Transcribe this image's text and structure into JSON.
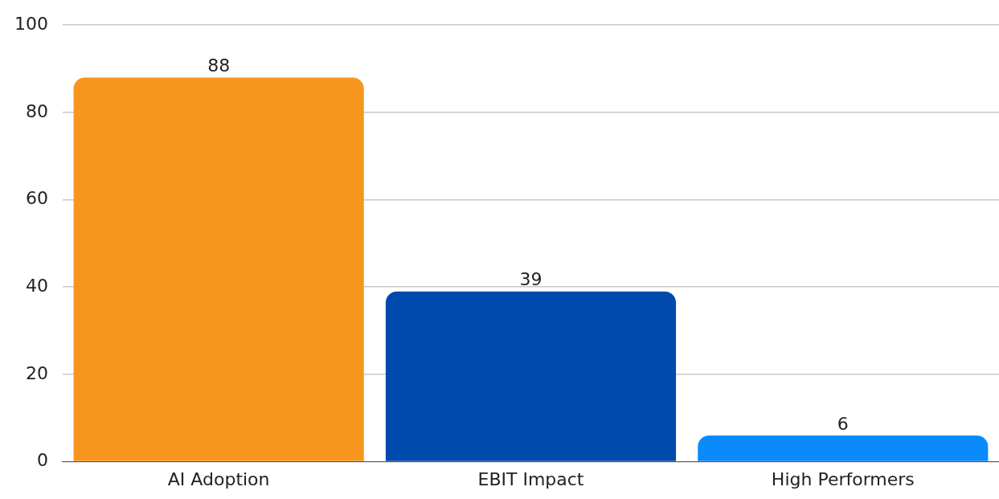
{
  "chart_data": {
    "type": "bar",
    "categories": [
      "AI Adoption",
      "EBIT Impact",
      "High Performers"
    ],
    "values": [
      88,
      39,
      6
    ],
    "colors": [
      "#f7961f",
      "#004aad",
      "#0b8bfb"
    ],
    "ylim": [
      0,
      100
    ],
    "yticks": [
      0,
      20,
      40,
      60,
      80,
      100
    ],
    "grid": "y",
    "data_labels": true
  }
}
